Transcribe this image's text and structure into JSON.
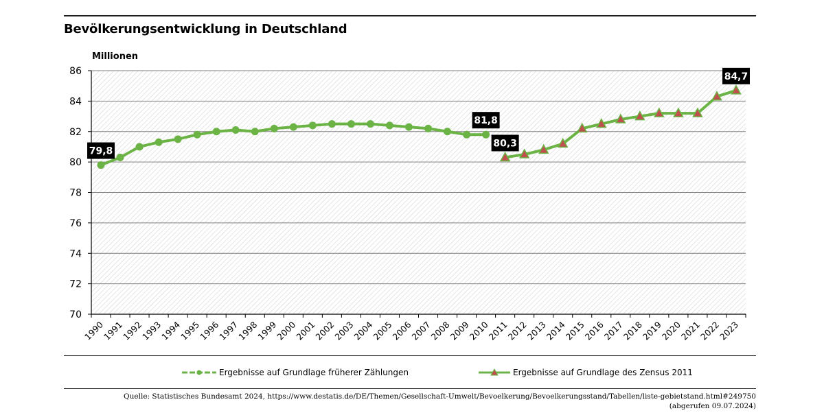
{
  "colors": {
    "line": "#6ab344",
    "marker_fill": "#c0504d",
    "label_bg": "#000000",
    "label_text": "#ffffff",
    "grid": "#7f7f7f"
  },
  "chart_data": {
    "type": "line",
    "title": "Bevölkerungsentwicklung in Deutschland",
    "ylabel": "Millionen",
    "ylim": [
      70,
      86
    ],
    "yticks": [
      "70",
      "72",
      "74",
      "76",
      "78",
      "80",
      "82",
      "84",
      "86"
    ],
    "categories": [
      "1990",
      "1991",
      "1992",
      "1993",
      "1994",
      "1995",
      "1996",
      "1997",
      "1998",
      "1999",
      "2000",
      "2001",
      "2002",
      "2003",
      "2004",
      "2005",
      "2006",
      "2007",
      "2008",
      "2009",
      "2010",
      "2011",
      "2012",
      "2013",
      "2014",
      "2015",
      "2016",
      "2017",
      "2018",
      "2019",
      "2020",
      "2021",
      "2022",
      "2023"
    ],
    "series": [
      {
        "name": "Ergebnisse auf Grundlage früherer Zählungen",
        "marker": "circle",
        "x": [
          "1990",
          "1991",
          "1992",
          "1993",
          "1994",
          "1995",
          "1996",
          "1997",
          "1998",
          "1999",
          "2000",
          "2001",
          "2002",
          "2003",
          "2004",
          "2005",
          "2006",
          "2007",
          "2008",
          "2009",
          "2010"
        ],
        "values": [
          79.8,
          80.3,
          81.0,
          81.3,
          81.5,
          81.8,
          82.0,
          82.1,
          82.0,
          82.2,
          82.3,
          82.4,
          82.5,
          82.5,
          82.5,
          82.4,
          82.3,
          82.2,
          82.0,
          81.8,
          81.8
        ]
      },
      {
        "name": "Ergebnisse auf Grundlage des Zensus 2011",
        "marker": "triangle",
        "x": [
          "2011",
          "2012",
          "2013",
          "2014",
          "2015",
          "2016",
          "2017",
          "2018",
          "2019",
          "2020",
          "2021",
          "2022",
          "2023"
        ],
        "values": [
          80.3,
          80.5,
          80.8,
          81.2,
          82.2,
          82.5,
          82.8,
          83.0,
          83.2,
          83.2,
          83.2,
          84.3,
          84.7
        ]
      }
    ],
    "annotations": [
      {
        "text": "79,8",
        "x": "1990",
        "value": 79.8,
        "position": "above"
      },
      {
        "text": "81,8",
        "x": "2010",
        "value": 81.8,
        "position": "above"
      },
      {
        "text": "80,3",
        "x": "2011",
        "value": 80.3,
        "position": "above"
      },
      {
        "text": "84,7",
        "x": "2023",
        "value": 84.7,
        "position": "above"
      }
    ]
  },
  "legend": {
    "item1": "Ergebnisse auf Grundlage früherer Zählungen",
    "item2": "Ergebnisse auf Grundlage des Zensus 2011"
  },
  "source": {
    "line1": "Quelle: Statistisches Bundesamt 2024, https://www.destatis.de/DE/Themen/Gesellschaft-Umwelt/Bevoelkerung/Bevoelkerungsstand/Tabellen/liste-gebietstand.html#249750",
    "line2": "(abgerufen 09.07.2024)"
  }
}
